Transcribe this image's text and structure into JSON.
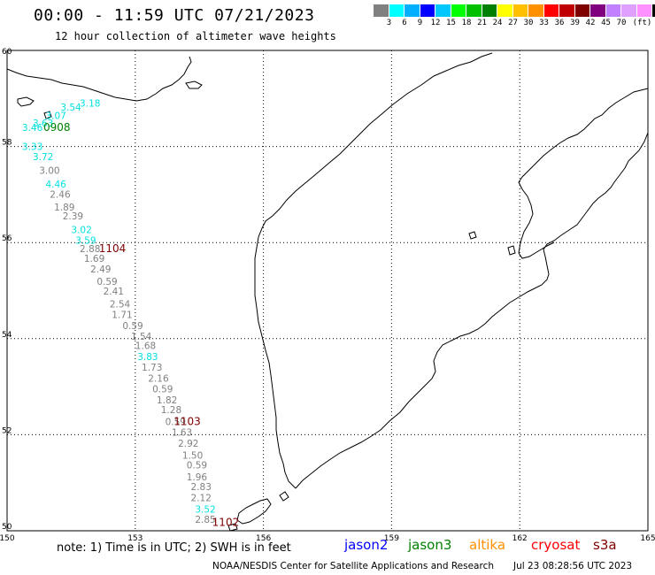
{
  "header": {
    "title": "00:00 - 11:59 UTC 07/21/2023",
    "subtitle": "12 hour collection of altimeter wave heights"
  },
  "legend": {
    "unit": "(ft)",
    "colors": [
      "#808080",
      "#00ffff",
      "#00b0ff",
      "#0000ff",
      "#00c8ff",
      "#00ff00",
      "#00c000",
      "#008000",
      "#ffff00",
      "#ffc000",
      "#ff9000",
      "#ff0000",
      "#c00000",
      "#800000",
      "#800080",
      "#c080ff",
      "#e0a0ff",
      "#ff90ff",
      "#000000"
    ],
    "labels": [
      "3",
      "6",
      "9",
      "12",
      "15",
      "18",
      "21",
      "24",
      "27",
      "30",
      "33",
      "36",
      "39",
      "42",
      "45",
      "70"
    ]
  },
  "map": {
    "lon_labels": [
      "150",
      "153",
      "156",
      "159",
      "162",
      "165"
    ],
    "lat_labels": [
      "60",
      "58",
      "56",
      "54",
      "52",
      "50"
    ],
    "colors": {
      "grey": "#808080",
      "cyan": "#00e0e0",
      "green": "#008000",
      "darkred": "#800000"
    },
    "swh_labels": [
      {
        "v": "3.18",
        "c": "cyan",
        "lon": 151.7,
        "lat": 58.83
      },
      {
        "v": "3.54",
        "c": "cyan",
        "lon": 151.25,
        "lat": 58.75
      },
      {
        "v": "3.07",
        "c": "cyan",
        "lon": 150.9,
        "lat": 58.57
      },
      {
        "v": "3.63",
        "c": "cyan",
        "lon": 150.6,
        "lat": 58.42
      },
      {
        "v": "3.46",
        "c": "cyan",
        "lon": 150.35,
        "lat": 58.32
      },
      {
        "v": "3.33",
        "c": "cyan",
        "lon": 150.35,
        "lat": 57.93
      },
      {
        "v": "3.72",
        "c": "cyan",
        "lon": 150.6,
        "lat": 57.72
      },
      {
        "v": "3.00",
        "c": "grey",
        "lon": 150.75,
        "lat": 57.43
      },
      {
        "v": "4.46",
        "c": "cyan",
        "lon": 150.9,
        "lat": 57.15
      },
      {
        "v": "2.46",
        "c": "grey",
        "lon": 151.0,
        "lat": 56.93
      },
      {
        "v": "1.89",
        "c": "grey",
        "lon": 151.1,
        "lat": 56.67
      },
      {
        "v": "2.39",
        "c": "grey",
        "lon": 151.3,
        "lat": 56.48
      },
      {
        "v": "3.02",
        "c": "cyan",
        "lon": 151.5,
        "lat": 56.2
      },
      {
        "v": "3.59",
        "c": "cyan",
        "lon": 151.6,
        "lat": 55.98
      },
      {
        "v": "2.88",
        "c": "grey",
        "lon": 151.7,
        "lat": 55.8
      },
      {
        "v": "1.69",
        "c": "grey",
        "lon": 151.8,
        "lat": 55.6
      },
      {
        "v": "2.49",
        "c": "grey",
        "lon": 151.95,
        "lat": 55.38
      },
      {
        "v": "0.59",
        "c": "grey",
        "lon": 152.1,
        "lat": 55.12
      },
      {
        "v": "2.41",
        "c": "grey",
        "lon": 152.25,
        "lat": 54.92
      },
      {
        "v": "2.54",
        "c": "grey",
        "lon": 152.4,
        "lat": 54.65
      },
      {
        "v": "1.71",
        "c": "grey",
        "lon": 152.45,
        "lat": 54.43
      },
      {
        "v": "0.59",
        "c": "grey",
        "lon": 152.7,
        "lat": 54.2
      },
      {
        "v": "1.54",
        "c": "grey",
        "lon": 152.9,
        "lat": 53.98
      },
      {
        "v": "1.68",
        "c": "grey",
        "lon": 153.0,
        "lat": 53.78
      },
      {
        "v": "3.83",
        "c": "cyan",
        "lon": 153.05,
        "lat": 53.55
      },
      {
        "v": "1.73",
        "c": "grey",
        "lon": 153.15,
        "lat": 53.33
      },
      {
        "v": "2.16",
        "c": "grey",
        "lon": 153.3,
        "lat": 53.1
      },
      {
        "v": "0.59",
        "c": "grey",
        "lon": 153.4,
        "lat": 52.88
      },
      {
        "v": "1.82",
        "c": "grey",
        "lon": 153.5,
        "lat": 52.65
      },
      {
        "v": "1.28",
        "c": "grey",
        "lon": 153.6,
        "lat": 52.45
      },
      {
        "v": "0.59",
        "c": "grey",
        "lon": 153.7,
        "lat": 52.2
      },
      {
        "v": "1.63",
        "c": "grey",
        "lon": 153.85,
        "lat": 51.98
      },
      {
        "v": "2.92",
        "c": "grey",
        "lon": 154.0,
        "lat": 51.75
      },
      {
        "v": "1.50",
        "c": "grey",
        "lon": 154.1,
        "lat": 51.5
      },
      {
        "v": "0.59",
        "c": "grey",
        "lon": 154.2,
        "lat": 51.3
      },
      {
        "v": "1.96",
        "c": "grey",
        "lon": 154.2,
        "lat": 51.05
      },
      {
        "v": "2.83",
        "c": "grey",
        "lon": 154.3,
        "lat": 50.85
      },
      {
        "v": "2.12",
        "c": "grey",
        "lon": 154.3,
        "lat": 50.62
      },
      {
        "v": "3.52",
        "c": "cyan",
        "lon": 154.4,
        "lat": 50.38
      },
      {
        "v": "2.85",
        "c": "grey",
        "lon": 154.4,
        "lat": 50.17
      }
    ],
    "time_labels": [
      {
        "v": "0908",
        "c": "green",
        "lon": 150.85,
        "lat": 58.32
      },
      {
        "v": "1104",
        "c": "darkred",
        "lon": 152.15,
        "lat": 55.8
      },
      {
        "v": "1103",
        "c": "darkred",
        "lon": 153.9,
        "lat": 52.2
      },
      {
        "v": "1102",
        "c": "darkred",
        "lon": 154.8,
        "lat": 50.1
      }
    ]
  },
  "footer": {
    "note": "note: 1) Time is in UTC; 2) SWH is in feet",
    "satellites": [
      {
        "name": "jason2",
        "color": "#0000ff"
      },
      {
        "name": "jason3",
        "color": "#008000"
      },
      {
        "name": "altika",
        "color": "#ff9000"
      },
      {
        "name": "cryosat",
        "color": "#ff0000"
      },
      {
        "name": "s3a",
        "color": "#800000"
      }
    ],
    "credit": "NOAA/NESDIS Center for Satellite Applications and Research",
    "timestamp": "Jul 23 08:28:56 UTC 2023"
  }
}
